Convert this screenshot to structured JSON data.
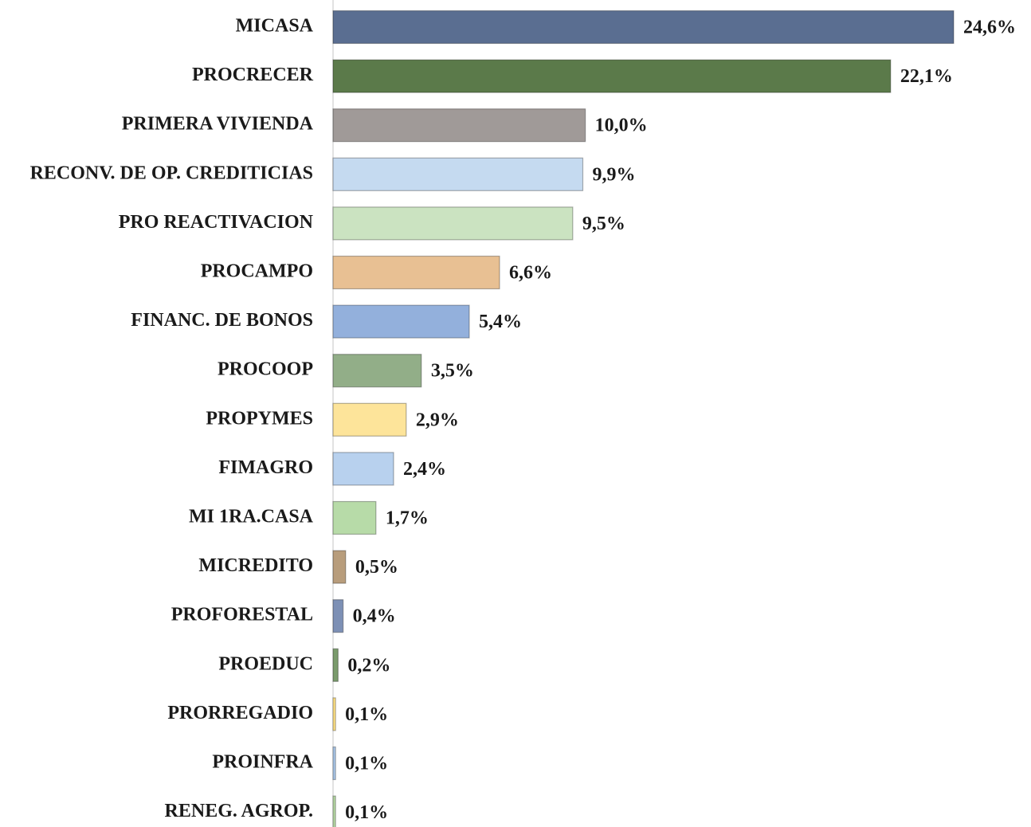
{
  "chart_data": {
    "type": "hbar",
    "categories": [
      "MICASA",
      "PROCRECER",
      "PRIMERA VIVIENDA",
      "RECONV. DE OP. CREDITICIAS",
      "PRO REACTIVACION",
      "PROCAMPO",
      "FINANC. DE BONOS",
      "PROCOOP",
      "PROPYMES",
      "FIMAGRO",
      "MI 1RA.CASA",
      "MICREDITO",
      "PROFORESTAL",
      "PROEDUC",
      "PRORREGADIO",
      "PROINFRA",
      "RENEG. AGROP."
    ],
    "values": [
      24.6,
      22.1,
      10.0,
      9.9,
      9.5,
      6.6,
      5.4,
      3.5,
      2.9,
      2.4,
      1.7,
      0.5,
      0.4,
      0.2,
      0.1,
      0.1,
      0.1
    ],
    "value_labels": [
      "24,6%",
      "22,1%",
      "10,0%",
      "9,9%",
      "9,5%",
      "6,6%",
      "5,4%",
      "3,5%",
      "2,9%",
      "2,4%",
      "1,7%",
      "0,5%",
      "0,4%",
      "0,2%",
      "0,1%",
      "0,1%",
      "0,1%"
    ],
    "colors": [
      "#5a6e91",
      "#5b7a4a",
      "#a09a98",
      "#c5daf0",
      "#cbe3c1",
      "#e8c093",
      "#93b0dc",
      "#92ae88",
      "#fde49a",
      "#b8d1ee",
      "#b7dba8",
      "#b89d7c",
      "#7d90b5",
      "#7a9b6c",
      "#fde085",
      "#a9c6e8",
      "#b5d7a4"
    ]
  }
}
